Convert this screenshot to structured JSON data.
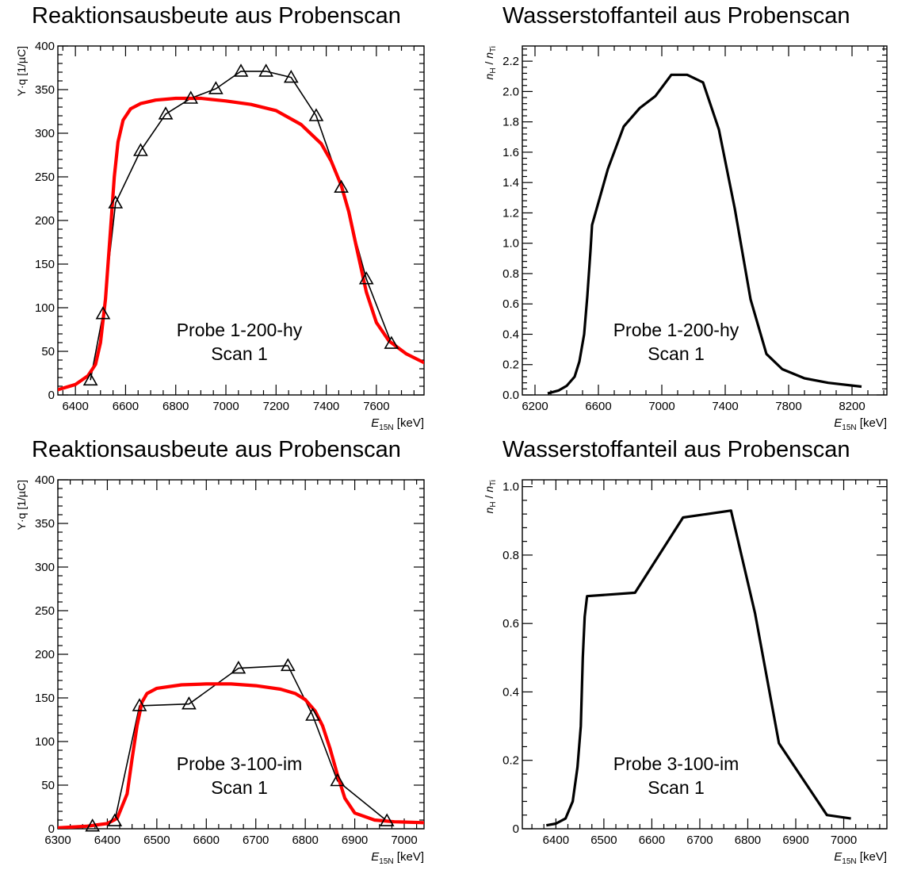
{
  "colors": {
    "fit": "#ff0000",
    "data": "#000000",
    "frame": "#000000"
  },
  "chart_data": [
    {
      "type": "line",
      "title": "Reaktionsausbeute aus Probenscan",
      "xlabel_var": "E",
      "xlabel_sub": "15N",
      "xlabel_unit": " [keV]",
      "ylabel": "Y·q [1/µC]",
      "xlim": [
        6330,
        7790
      ],
      "ylim": [
        0,
        400
      ],
      "xticks": [
        6400,
        6600,
        6800,
        7000,
        7200,
        7400,
        7600
      ],
      "yticks": [
        0,
        50,
        100,
        150,
        200,
        250,
        300,
        350,
        400
      ],
      "annotation": [
        "Probe 1-200-hy",
        "Scan 1"
      ],
      "series": [
        {
          "marker": "triangle-open",
          "x": [
            6460,
            6510,
            6560,
            6660,
            6760,
            6860,
            6960,
            7060,
            7160,
            7260,
            7360,
            7460,
            7560,
            7660
          ],
          "y": [
            17,
            93,
            220,
            280,
            322,
            340,
            351,
            371,
            371,
            364,
            320,
            238,
            133,
            59
          ]
        },
        {
          "style": "fit",
          "x": [
            6330,
            6400,
            6450,
            6480,
            6500,
            6520,
            6540,
            6555,
            6570,
            6590,
            6620,
            6660,
            6720,
            6800,
            6900,
            7000,
            7100,
            7200,
            7300,
            7380,
            7420,
            7460,
            7490,
            7520,
            7560,
            7600,
            7650,
            7720,
            7790
          ],
          "y": [
            6,
            12,
            22,
            35,
            60,
            110,
            190,
            250,
            290,
            315,
            328,
            334,
            338,
            340,
            340,
            337,
            333,
            326,
            310,
            288,
            268,
            240,
            210,
            170,
            118,
            83,
            62,
            47,
            37
          ]
        }
      ]
    },
    {
      "type": "line",
      "title": "Wasserstoffanteil aus Probenscan",
      "xlabel_var": "E",
      "xlabel_sub": "15N",
      "xlabel_unit": " [keV]",
      "ylabel_parts": [
        "n",
        "H",
        " / ",
        "n",
        "Ti"
      ],
      "xlim": [
        6120,
        8420
      ],
      "ylim": [
        0,
        2.3
      ],
      "xticks": [
        6200,
        6600,
        7000,
        7400,
        7800,
        8200
      ],
      "yticks": [
        0.0,
        0.2,
        0.4,
        0.6,
        0.8,
        1.0,
        1.2,
        1.4,
        1.6,
        1.8,
        2.0,
        2.2
      ],
      "annotation": [
        "Probe 1-200-hy",
        "Scan 1"
      ],
      "series": [
        {
          "x": [
            6280,
            6350,
            6400,
            6450,
            6480,
            6510,
            6530,
            6550,
            6560,
            6660,
            6760,
            6860,
            6960,
            7060,
            7160,
            7260,
            7360,
            7460,
            7560,
            7660,
            7760,
            7900,
            8050,
            8260
          ],
          "y": [
            0.01,
            0.03,
            0.06,
            0.12,
            0.22,
            0.4,
            0.65,
            0.95,
            1.12,
            1.49,
            1.77,
            1.89,
            1.97,
            2.11,
            2.11,
            2.06,
            1.75,
            1.23,
            0.63,
            0.27,
            0.17,
            0.11,
            0.08,
            0.055
          ]
        }
      ]
    },
    {
      "type": "line",
      "title": "Reaktionsausbeute aus Probenscan",
      "xlabel_var": "E",
      "xlabel_sub": "15N",
      "xlabel_unit": " [keV]",
      "ylabel": "Y·q [1/µC]",
      "xlim": [
        6300,
        7040
      ],
      "ylim": [
        0,
        400
      ],
      "xticks": [
        6300,
        6400,
        6500,
        6600,
        6700,
        6800,
        6900,
        7000
      ],
      "yticks": [
        0,
        50,
        100,
        150,
        200,
        250,
        300,
        350,
        400
      ],
      "annotation": [
        "Probe 3-100-im",
        "Scan 1"
      ],
      "series": [
        {
          "marker": "triangle-open",
          "x": [
            6370,
            6415,
            6465,
            6565,
            6665,
            6765,
            6815,
            6865,
            6965
          ],
          "y": [
            3,
            9,
            141,
            143,
            184,
            187,
            130,
            55,
            9
          ]
        },
        {
          "style": "fit",
          "x": [
            6300,
            6360,
            6400,
            6420,
            6440,
            6450,
            6460,
            6470,
            6480,
            6500,
            6550,
            6600,
            6650,
            6700,
            6750,
            6780,
            6800,
            6820,
            6835,
            6850,
            6865,
            6880,
            6900,
            6940,
            6980,
            7040
          ],
          "y": [
            1,
            3,
            6,
            12,
            40,
            80,
            118,
            145,
            155,
            161,
            165,
            166,
            166,
            164,
            160,
            155,
            148,
            135,
            118,
            92,
            62,
            35,
            18,
            10,
            8,
            7
          ]
        }
      ]
    },
    {
      "type": "line",
      "title": "Wasserstoffanteil aus Probenscan",
      "xlabel_var": "E",
      "xlabel_sub": "15N",
      "xlabel_unit": " [keV]",
      "ylabel_parts": [
        "n",
        "H",
        " / ",
        "n",
        "Ti"
      ],
      "xlim": [
        6330,
        7090
      ],
      "ylim": [
        0,
        1.02
      ],
      "xticks": [
        6400,
        6500,
        6600,
        6700,
        6800,
        6900,
        7000
      ],
      "yticks": [
        0.2,
        0.4,
        0.6,
        0.8,
        1.0
      ],
      "y_origin_label": "0",
      "annotation": [
        "Probe 3-100-im",
        "Scan 1"
      ],
      "series": [
        {
          "x": [
            6380,
            6400,
            6420,
            6435,
            6445,
            6452,
            6456,
            6460,
            6465,
            6565,
            6665,
            6765,
            6815,
            6865,
            6965,
            7015
          ],
          "y": [
            0.01,
            0.015,
            0.03,
            0.08,
            0.18,
            0.3,
            0.5,
            0.62,
            0.68,
            0.69,
            0.91,
            0.93,
            0.63,
            0.25,
            0.04,
            0.03
          ]
        }
      ]
    }
  ]
}
